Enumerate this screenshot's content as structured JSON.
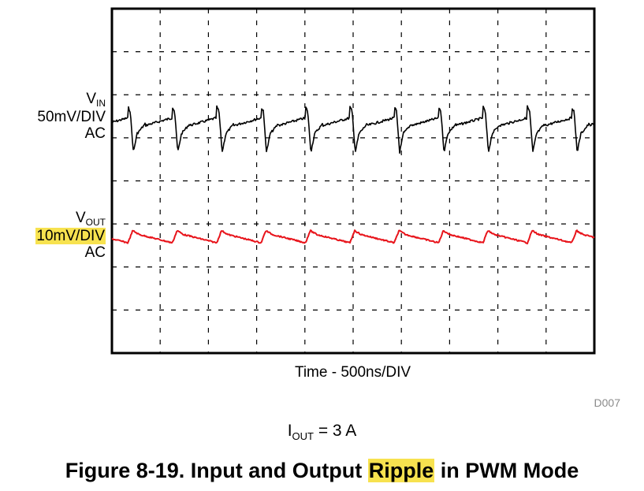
{
  "chart_data": {
    "type": "line",
    "title": "",
    "xlabel": "Time - 500ns/DIV",
    "grid": true,
    "divisions": {
      "x": 10,
      "y": 8
    },
    "series": [
      {
        "name": "VIN",
        "label_main": "V",
        "label_sub": "IN",
        "scale": "50mV/DIV",
        "coupling": "AC",
        "color": "#000000",
        "period_div": 0.92,
        "spike_div_offset": 0.33,
        "baseline_div": 2.75,
        "spike_amplitude_mv": 60,
        "ripple_mv": 40
      },
      {
        "name": "VOUT",
        "label_main": "V",
        "label_sub": "OUT",
        "scale": "10mV/DIV",
        "coupling": "AC",
        "color": "#e8141b",
        "period_div": 0.92,
        "spike_div_offset": 0.33,
        "baseline_div": 5.3,
        "ripple_mv": 3
      }
    ]
  },
  "doc_id": "D007",
  "condition": {
    "main": "I",
    "sub": "OUT",
    "rest": " = 3 A"
  },
  "caption": {
    "before": "Figure 8-19. Input and Output ",
    "highlight": "Ripple",
    "after": " in PWM Mode"
  }
}
